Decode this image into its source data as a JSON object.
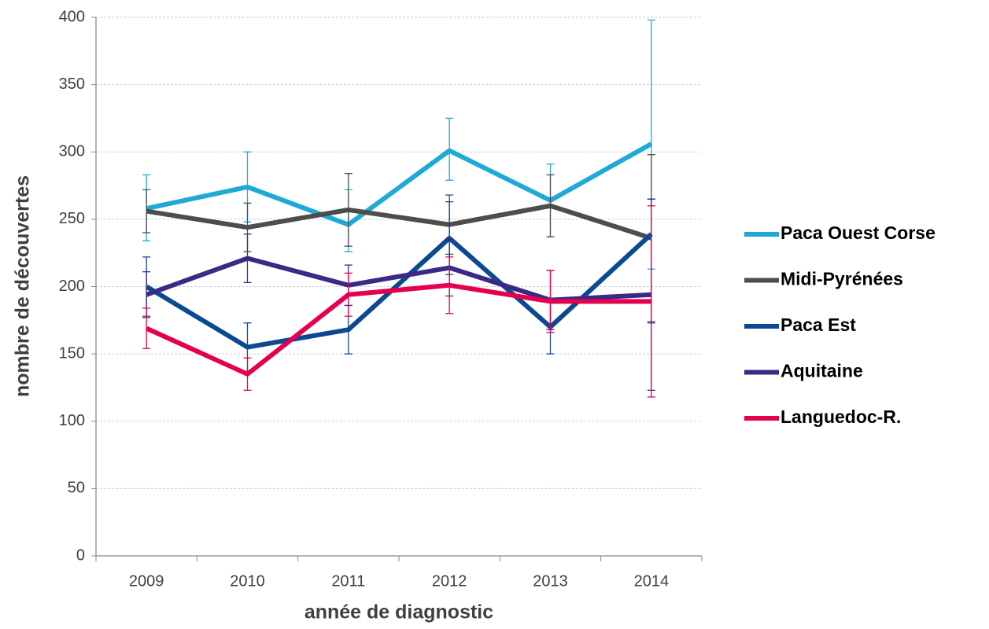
{
  "chart_data": {
    "type": "line",
    "x_label": "année de diagnostic",
    "y_label": "nombre de découvertes",
    "categories": [
      "2009",
      "2010",
      "2011",
      "2012",
      "2013",
      "2014"
    ],
    "ylim": [
      0,
      400
    ],
    "yticks": [
      0,
      50,
      100,
      150,
      200,
      250,
      300,
      350,
      400
    ],
    "grid": true,
    "legend": "right",
    "series": [
      {
        "name": "Paca Ouest Corse",
        "color": "#1fa9d6",
        "values": [
          258,
          274,
          246,
          301,
          264,
          306
        ],
        "lower": [
          234,
          248,
          226,
          279,
          237,
          213
        ],
        "upper": [
          283,
          300,
          272,
          325,
          291,
          398
        ]
      },
      {
        "name": "Midi-Pyrénées",
        "color": "#4d4d4d",
        "values": [
          256,
          244,
          257,
          246,
          260,
          236
        ],
        "lower": [
          240,
          226,
          230,
          224,
          237,
          174
        ],
        "upper": [
          272,
          262,
          284,
          268,
          283,
          298
        ]
      },
      {
        "name": "Paca Est",
        "color": "#0b4a92",
        "values": [
          200,
          155,
          168,
          236,
          170,
          239
        ],
        "lower": [
          178,
          137,
          150,
          209,
          150,
          173
        ],
        "upper": [
          222,
          173,
          186,
          263,
          190,
          265
        ]
      },
      {
        "name": "Aquitaine",
        "color": "#3a2a86",
        "values": [
          194,
          221,
          201,
          214,
          190,
          194
        ],
        "lower": [
          177,
          203,
          186,
          193,
          168,
          123
        ],
        "upper": [
          211,
          239,
          216,
          235,
          212,
          265
        ]
      },
      {
        "name": "Languedoc-R.",
        "color": "#e5004f",
        "values": [
          169,
          135,
          194,
          201,
          189,
          189
        ],
        "lower": [
          154,
          123,
          178,
          180,
          166,
          118
        ],
        "upper": [
          184,
          147,
          210,
          222,
          212,
          260
        ]
      }
    ]
  }
}
